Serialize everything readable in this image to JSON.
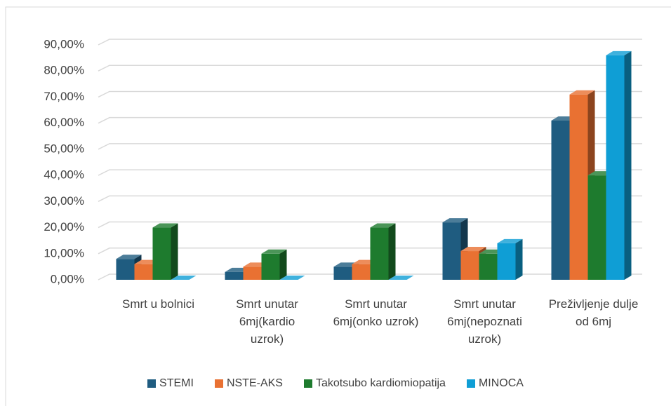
{
  "chart_data": {
    "type": "bar3d",
    "categories": [
      "Smrt u bolnici",
      "Smrt unutar 6mj(kardio uzrok)",
      "Smrt unutar 6mj(onko uzrok)",
      "Smrt unutar 6mj(nepoznati uzrok)",
      "Preživljenje dulje od 6mj"
    ],
    "series": [
      {
        "name": "STEMI",
        "color": "#1f5c80",
        "values": [
          8,
          3,
          5,
          22,
          61
        ]
      },
      {
        "name": "NSTE-AKS",
        "color": "#e97132",
        "values": [
          6,
          5,
          6,
          11,
          71
        ]
      },
      {
        "name": "Takotsubo kardiomiopatija",
        "color": "#1e7b2e",
        "values": [
          20,
          10,
          20,
          10,
          40
        ]
      },
      {
        "name": "MINOCA",
        "color": "#0f9ed5",
        "values": [
          0,
          0,
          0,
          14,
          86
        ]
      }
    ],
    "ylim": [
      0,
      90
    ],
    "yticks": [
      {
        "value": 0,
        "label": "0,00%"
      },
      {
        "value": 10,
        "label": "10,00%"
      },
      {
        "value": 20,
        "label": "20,00%"
      },
      {
        "value": 30,
        "label": "30,00%"
      },
      {
        "value": 40,
        "label": "40,00%"
      },
      {
        "value": 50,
        "label": "50,00%"
      },
      {
        "value": 60,
        "label": "60,00%"
      },
      {
        "value": 70,
        "label": "70,00%"
      },
      {
        "value": 80,
        "label": "80,00%"
      },
      {
        "value": 90,
        "label": "90,00%"
      }
    ],
    "grid": true,
    "legend": "bottom"
  }
}
